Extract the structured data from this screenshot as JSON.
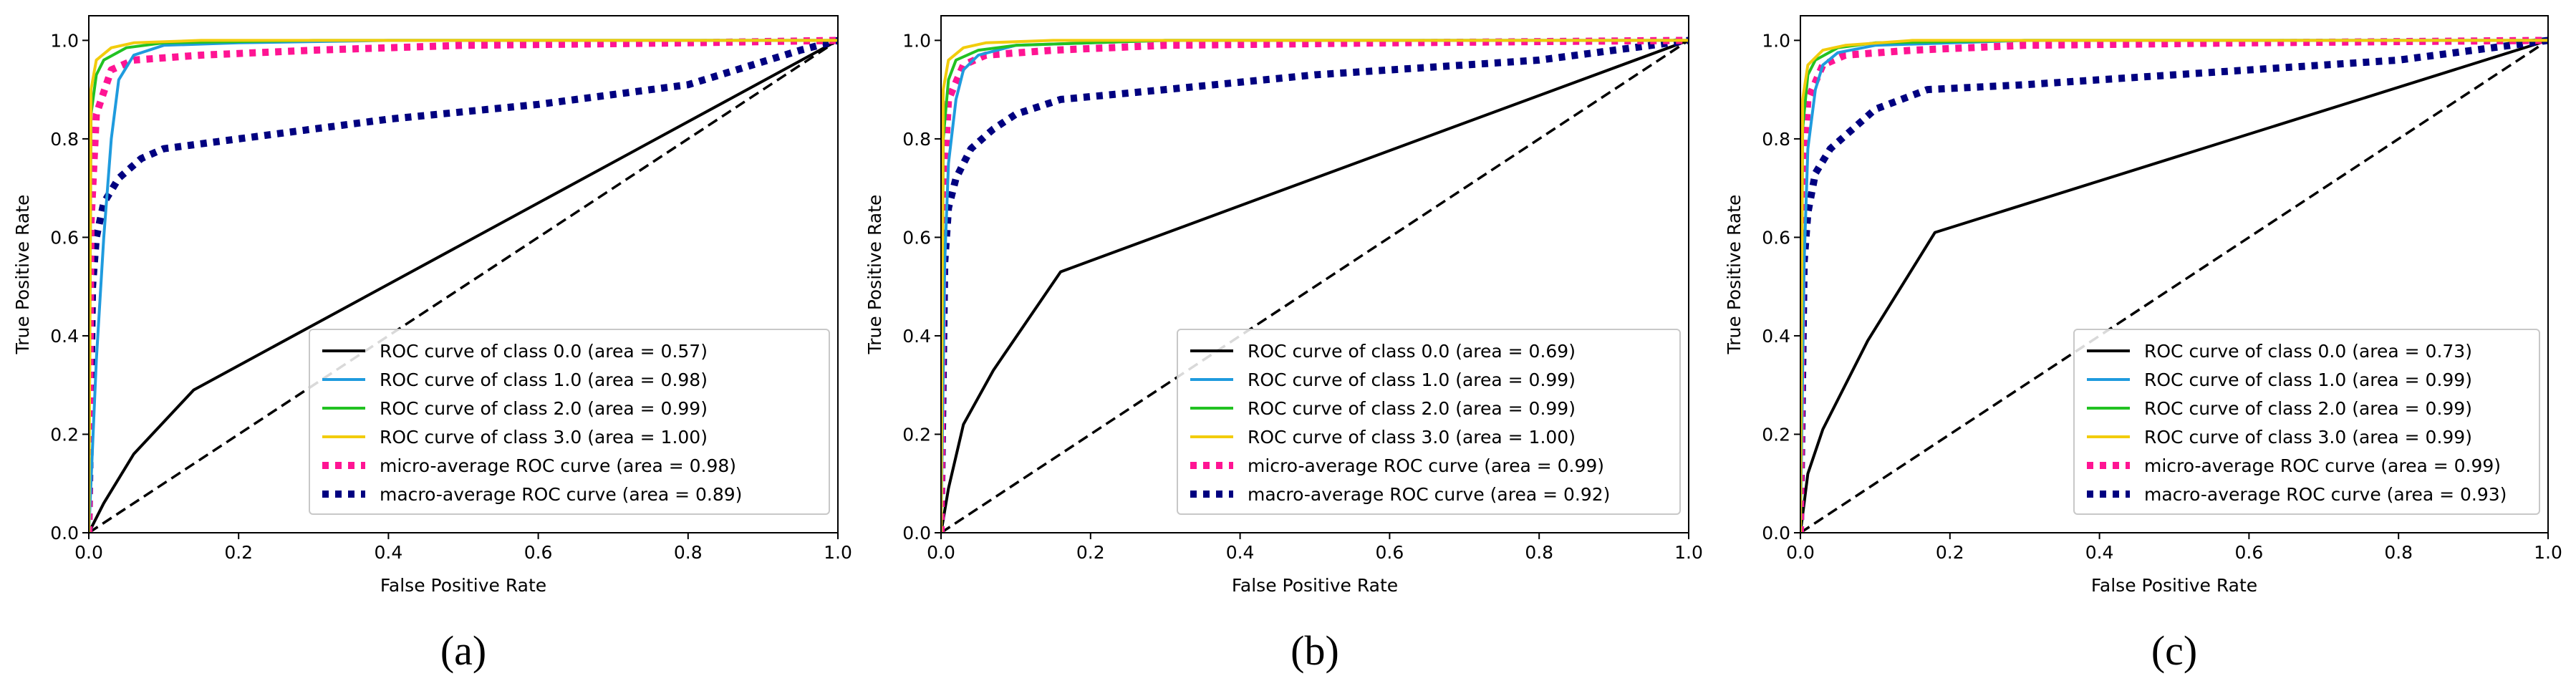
{
  "chart_data": [
    {
      "type": "line",
      "caption": "(a)",
      "xlabel": "False Positive Rate",
      "ylabel": "True Positive Rate",
      "xlim": [
        0.0,
        1.0
      ],
      "ylim": [
        0.0,
        1.05
      ],
      "xticks": [
        "0.0",
        "0.2",
        "0.4",
        "0.6",
        "0.8",
        "1.0"
      ],
      "yticks": [
        "0.0",
        "0.2",
        "0.4",
        "0.6",
        "0.8",
        "1.0"
      ],
      "grid": false,
      "legend_position": "bottom-right",
      "series": [
        {
          "name": "ROC curve of class 0.0 (area = 0.57)",
          "color": "#000000",
          "style": "solid",
          "x": [
            0.0,
            0.02,
            0.06,
            0.14,
            1.0
          ],
          "y": [
            0.0,
            0.06,
            0.16,
            0.29,
            1.0
          ]
        },
        {
          "name": "ROC curve of class 1.0 (area = 0.98)",
          "color": "#1f9bde",
          "style": "solid",
          "x": [
            0.0,
            0.01,
            0.02,
            0.03,
            0.04,
            0.06,
            0.1,
            0.2,
            0.4,
            1.0
          ],
          "y": [
            0.0,
            0.35,
            0.6,
            0.8,
            0.92,
            0.97,
            0.99,
            0.995,
            1.0,
            1.0
          ]
        },
        {
          "name": "ROC curve of class 2.0 (area = 0.99)",
          "color": "#22c222",
          "style": "solid",
          "x": [
            0.0,
            0.003,
            0.01,
            0.02,
            0.05,
            0.1,
            0.3,
            1.0
          ],
          "y": [
            0.0,
            0.85,
            0.93,
            0.96,
            0.985,
            0.995,
            1.0,
            1.0
          ]
        },
        {
          "name": "ROC curve of class 3.0 (area = 1.00)",
          "color": "#f2cc0c",
          "style": "solid",
          "x": [
            0.0,
            0.003,
            0.01,
            0.03,
            0.06,
            0.15,
            1.0
          ],
          "y": [
            0.0,
            0.9,
            0.96,
            0.985,
            0.995,
            1.0,
            1.0
          ]
        },
        {
          "name": "micro-average ROC curve (area = 0.98)",
          "color": "#ff1493",
          "style": "dotted",
          "x": [
            0.0,
            0.003,
            0.01,
            0.03,
            0.06,
            0.15,
            0.3,
            0.5,
            0.8,
            1.0
          ],
          "y": [
            0.0,
            0.63,
            0.85,
            0.94,
            0.96,
            0.97,
            0.98,
            0.99,
            0.995,
            1.0
          ]
        },
        {
          "name": "macro-average ROC curve (area = 0.89)",
          "color": "#000080",
          "style": "dotted",
          "x": [
            0.0,
            0.005,
            0.01,
            0.02,
            0.04,
            0.07,
            0.1,
            0.2,
            0.4,
            0.6,
            0.8,
            0.95,
            1.0
          ],
          "y": [
            0.0,
            0.5,
            0.6,
            0.67,
            0.72,
            0.76,
            0.78,
            0.8,
            0.84,
            0.87,
            0.91,
            0.98,
            1.0
          ]
        },
        {
          "name": "chance",
          "color": "#000000",
          "style": "dashed",
          "legend": false,
          "x": [
            0.0,
            1.0
          ],
          "y": [
            0.0,
            1.0
          ]
        }
      ]
    },
    {
      "type": "line",
      "caption": "(b)",
      "xlabel": "False Positive Rate",
      "ylabel": "True Positive Rate",
      "xlim": [
        0.0,
        1.0
      ],
      "ylim": [
        0.0,
        1.05
      ],
      "xticks": [
        "0.0",
        "0.2",
        "0.4",
        "0.6",
        "0.8",
        "1.0"
      ],
      "yticks": [
        "0.0",
        "0.2",
        "0.4",
        "0.6",
        "0.8",
        "1.0"
      ],
      "grid": false,
      "legend_position": "bottom-right",
      "series": [
        {
          "name": "ROC curve of class 0.0 (area = 0.69)",
          "color": "#000000",
          "style": "solid",
          "x": [
            0.0,
            0.01,
            0.03,
            0.07,
            0.16,
            1.0
          ],
          "y": [
            0.0,
            0.09,
            0.22,
            0.33,
            0.53,
            1.0
          ]
        },
        {
          "name": "ROC curve of class 1.0 (area = 0.99)",
          "color": "#1f9bde",
          "style": "solid",
          "x": [
            0.0,
            0.005,
            0.01,
            0.02,
            0.03,
            0.05,
            0.1,
            0.3,
            1.0
          ],
          "y": [
            0.0,
            0.55,
            0.75,
            0.88,
            0.94,
            0.97,
            0.99,
            1.0,
            1.0
          ]
        },
        {
          "name": "ROC curve of class 2.0 (area = 0.99)",
          "color": "#22c222",
          "style": "solid",
          "x": [
            0.0,
            0.003,
            0.01,
            0.02,
            0.05,
            0.1,
            0.3,
            1.0
          ],
          "y": [
            0.0,
            0.8,
            0.92,
            0.96,
            0.98,
            0.99,
            1.0,
            1.0
          ]
        },
        {
          "name": "ROC curve of class 3.0 (area = 1.00)",
          "color": "#f2cc0c",
          "style": "solid",
          "x": [
            0.0,
            0.003,
            0.01,
            0.03,
            0.06,
            0.15,
            1.0
          ],
          "y": [
            0.0,
            0.9,
            0.96,
            0.985,
            0.995,
            1.0,
            1.0
          ]
        },
        {
          "name": "micro-average ROC curve (area = 0.99)",
          "color": "#ff1493",
          "style": "dotted",
          "x": [
            0.0,
            0.003,
            0.01,
            0.03,
            0.06,
            0.15,
            0.3,
            0.6,
            1.0
          ],
          "y": [
            0.0,
            0.68,
            0.88,
            0.95,
            0.97,
            0.98,
            0.99,
            0.995,
            1.0
          ]
        },
        {
          "name": "macro-average ROC curve (area = 0.92)",
          "color": "#000080",
          "style": "dotted",
          "x": [
            0.0,
            0.005,
            0.01,
            0.02,
            0.04,
            0.07,
            0.1,
            0.16,
            0.3,
            0.5,
            0.8,
            0.95,
            1.0
          ],
          "y": [
            0.0,
            0.55,
            0.66,
            0.72,
            0.78,
            0.82,
            0.85,
            0.88,
            0.9,
            0.93,
            0.96,
            0.99,
            1.0
          ]
        },
        {
          "name": "chance",
          "color": "#000000",
          "style": "dashed",
          "legend": false,
          "x": [
            0.0,
            1.0
          ],
          "y": [
            0.0,
            1.0
          ]
        }
      ]
    },
    {
      "type": "line",
      "caption": "(c)",
      "xlabel": "False Positive Rate",
      "ylabel": "True Positive Rate",
      "xlim": [
        0.0,
        1.0
      ],
      "ylim": [
        0.0,
        1.05
      ],
      "xticks": [
        "0.0",
        "0.2",
        "0.4",
        "0.6",
        "0.8",
        "1.0"
      ],
      "yticks": [
        "0.0",
        "0.2",
        "0.4",
        "0.6",
        "0.8",
        "1.0"
      ],
      "grid": false,
      "legend_position": "bottom-right",
      "series": [
        {
          "name": "ROC curve of class 0.0 (area = 0.73)",
          "color": "#000000",
          "style": "solid",
          "x": [
            0.0,
            0.01,
            0.03,
            0.09,
            0.18,
            1.0
          ],
          "y": [
            0.0,
            0.12,
            0.21,
            0.39,
            0.61,
            1.0
          ]
        },
        {
          "name": "ROC curve of class 1.0 (area = 0.99)",
          "color": "#1f9bde",
          "style": "solid",
          "x": [
            0.0,
            0.005,
            0.01,
            0.02,
            0.03,
            0.05,
            0.1,
            0.3,
            1.0
          ],
          "y": [
            0.0,
            0.55,
            0.78,
            0.9,
            0.95,
            0.975,
            0.99,
            1.0,
            1.0
          ]
        },
        {
          "name": "ROC curve of class 2.0 (area = 0.99)",
          "color": "#22c222",
          "style": "solid",
          "x": [
            0.0,
            0.003,
            0.01,
            0.02,
            0.05,
            0.1,
            0.3,
            1.0
          ],
          "y": [
            0.0,
            0.82,
            0.93,
            0.96,
            0.985,
            0.995,
            1.0,
            1.0
          ]
        },
        {
          "name": "ROC curve of class 3.0 (area = 0.99)",
          "color": "#f2cc0c",
          "style": "solid",
          "x": [
            0.0,
            0.003,
            0.01,
            0.03,
            0.06,
            0.15,
            1.0
          ],
          "y": [
            0.0,
            0.88,
            0.95,
            0.98,
            0.99,
            1.0,
            1.0
          ]
        },
        {
          "name": "micro-average ROC curve (area = 0.99)",
          "color": "#ff1493",
          "style": "dotted",
          "x": [
            0.0,
            0.003,
            0.01,
            0.03,
            0.06,
            0.15,
            0.3,
            0.6,
            1.0
          ],
          "y": [
            0.0,
            0.7,
            0.88,
            0.95,
            0.97,
            0.98,
            0.99,
            0.995,
            1.0
          ]
        },
        {
          "name": "macro-average ROC curve (area = 0.93)",
          "color": "#000080",
          "style": "dotted",
          "x": [
            0.0,
            0.005,
            0.01,
            0.02,
            0.04,
            0.07,
            0.1,
            0.17,
            0.3,
            0.5,
            0.8,
            0.95,
            1.0
          ],
          "y": [
            0.0,
            0.55,
            0.65,
            0.73,
            0.78,
            0.82,
            0.86,
            0.9,
            0.91,
            0.93,
            0.96,
            0.99,
            1.0
          ]
        },
        {
          "name": "chance",
          "color": "#000000",
          "style": "dashed",
          "legend": false,
          "x": [
            0.0,
            1.0
          ],
          "y": [
            0.0,
            1.0
          ]
        }
      ]
    }
  ]
}
